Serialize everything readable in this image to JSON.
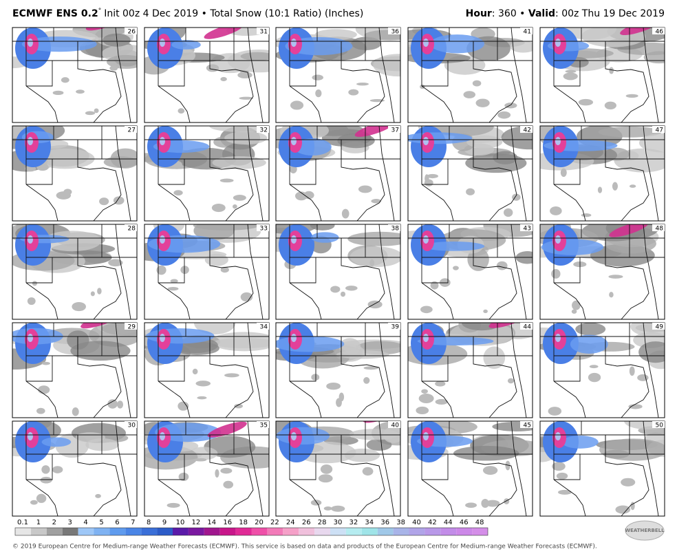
{
  "header": {
    "model": "ECMWF ENS 0.2",
    "degree": "°",
    "init": "Init 00z 4 Dec 2019 • Total Snow (10:1 Ratio) (Inches)",
    "hour_label": "Hour",
    "hour_value": ": 360 • ",
    "valid_label": "Valid",
    "valid_value": ": 00z Thu 19 Dec 2019"
  },
  "panels": [
    "26",
    "31",
    "36",
    "41",
    "46",
    "27",
    "32",
    "37",
    "42",
    "47",
    "28",
    "33",
    "38",
    "43",
    "48",
    "29",
    "34",
    "39",
    "44",
    "49",
    "30",
    "35",
    "40",
    "45",
    "50"
  ],
  "colorbar": {
    "labels": [
      "0.1",
      "1",
      "2",
      "3",
      "4",
      "5",
      "6",
      "7",
      "8",
      "9",
      "10",
      "12",
      "14",
      "16",
      "18",
      "20",
      "22",
      "24",
      "26",
      "28",
      "30",
      "32",
      "34",
      "36",
      "38",
      "40",
      "42",
      "44",
      "46",
      "48"
    ]
  },
  "logo": "WEATHERBELL",
  "footer": "© 2019 European Centre for Medium-range Weather Forecasts (ECMWF). This service is based on data and products of the European Centre for Medium-range Weather Forecasts (ECMWF)."
}
